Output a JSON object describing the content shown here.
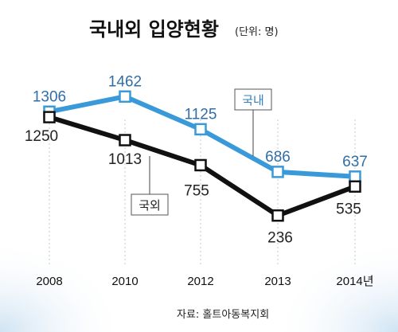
{
  "header": {
    "title": "국내외 입양현황",
    "unit": "(단위: 명)"
  },
  "source": "자료: 홀트아동복지회",
  "colors": {
    "international": "#3a9ad9",
    "domestic": "#111111",
    "int_label": "#2f6ea8",
    "background_glow": "#dcebf7"
  },
  "chart_data": {
    "type": "line",
    "categories": [
      "2008",
      "2010",
      "2012",
      "2013",
      "2014년"
    ],
    "series": [
      {
        "name": "국내",
        "values": [
          1306,
          1462,
          1125,
          686,
          637
        ]
      },
      {
        "name": "국외",
        "values": [
          1250,
          1013,
          755,
          236,
          535
        ]
      }
    ],
    "title": "국내외 입양현황",
    "subtitle": "(단위: 명)",
    "xlabel": "",
    "ylabel": "",
    "grid": false,
    "legend": "inline labels"
  }
}
